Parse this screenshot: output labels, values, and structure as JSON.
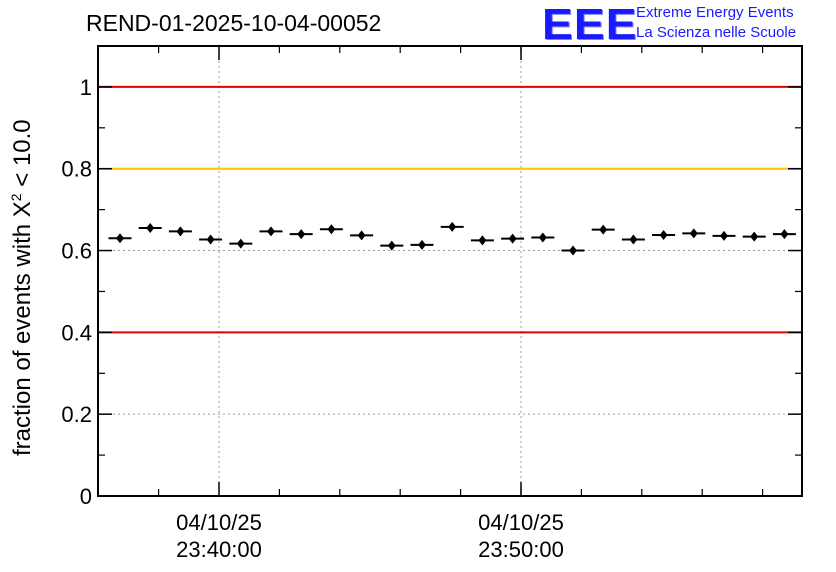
{
  "header": {
    "title": "REND-01-2025-10-04-00052",
    "logo_mark": "EEE",
    "logo_line1": "Extreme Energy Events",
    "logo_line2": "La Scienza nelle Scuole"
  },
  "chart_data": {
    "type": "scatter",
    "title": "REND-01-2025-10-04-00052",
    "ylabel_prefix": "fraction of events with X",
    "ylabel_sup": "2",
    "ylabel_suffix": " < 10.0",
    "xlabel": "",
    "ylim": [
      0,
      1.1
    ],
    "yticks": [
      0,
      0.2,
      0.4,
      0.6,
      0.8,
      1
    ],
    "ytick_labels": [
      "0",
      "0.2",
      "0.4",
      "0.6",
      "0.8",
      "1"
    ],
    "xticks_major": [
      {
        "date": "04/10/25",
        "time": "23:40:00"
      },
      {
        "date": "04/10/25",
        "time": "23:50:00"
      }
    ],
    "grid": true,
    "reference_lines": [
      {
        "y": 1.0,
        "color": "#e00000"
      },
      {
        "y": 0.8,
        "color": "#ffc000"
      },
      {
        "y": 0.4,
        "color": "#e00000"
      }
    ],
    "series": [
      {
        "name": "fraction",
        "values": [
          0.63,
          0.655,
          0.647,
          0.627,
          0.617,
          0.647,
          0.64,
          0.652,
          0.637,
          0.612,
          0.614,
          0.658,
          0.625,
          0.629,
          0.632,
          0.6,
          0.651,
          0.627,
          0.638,
          0.642,
          0.636,
          0.634,
          0.64
        ]
      }
    ]
  }
}
